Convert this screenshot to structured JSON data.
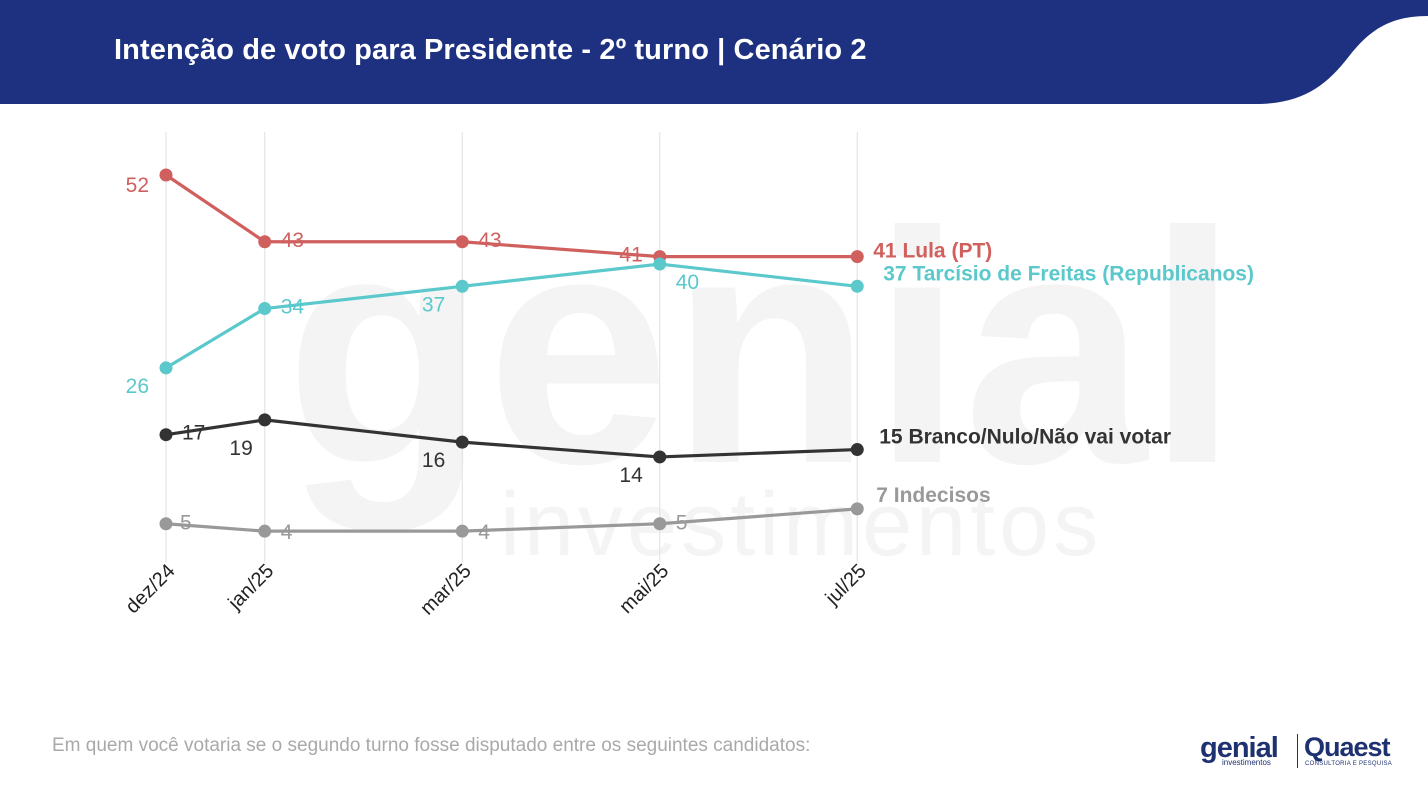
{
  "header": {
    "title": "Intenção de voto para Presidente - 2º turno | Cenário 2",
    "bg_color": "#1e3180"
  },
  "footnote": "Em quem você votaria se o segundo turno fosse disputado entre os seguintes candidatos:",
  "watermark": {
    "main": "genial",
    "sub": "investimentos"
  },
  "logos": {
    "genial": "genial",
    "genial_sub": "investimentos",
    "quaest": "Quaest",
    "quaest_sub": "CONSULTORIA E PESQUISA",
    "color": "#1e3170"
  },
  "chart_data": {
    "type": "line",
    "categories": [
      "dez/24",
      "jan/25",
      "mar/25",
      "mai/25",
      "jul/25"
    ],
    "x": [
      "2024-12",
      "2025-01",
      "2025-03",
      "2025-05",
      "2025-07"
    ],
    "ylim": [
      0,
      56
    ],
    "grid": "vertical",
    "series": [
      {
        "name": "Lula (PT)",
        "label": "41 Lula (PT)",
        "color": "#d0605e",
        "values": [
          52,
          43,
          43,
          41,
          41
        ]
      },
      {
        "name": "Tarcísio de Freitas (Republicanos)",
        "label": "37 Tarcísio de Freitas (Republicanos)",
        "color": "#5bc8cc",
        "values": [
          26,
          34,
          37,
          40,
          37
        ]
      },
      {
        "name": "Branco/Nulo/Não vai votar",
        "label": "15 Branco/Nulo/Não vai votar",
        "color": "#333333",
        "values": [
          17,
          19,
          16,
          14,
          15
        ]
      },
      {
        "name": "Indecisos",
        "label": "7 Indecisos",
        "color": "#999999",
        "values": [
          5,
          4,
          4,
          5,
          7
        ]
      }
    ]
  }
}
